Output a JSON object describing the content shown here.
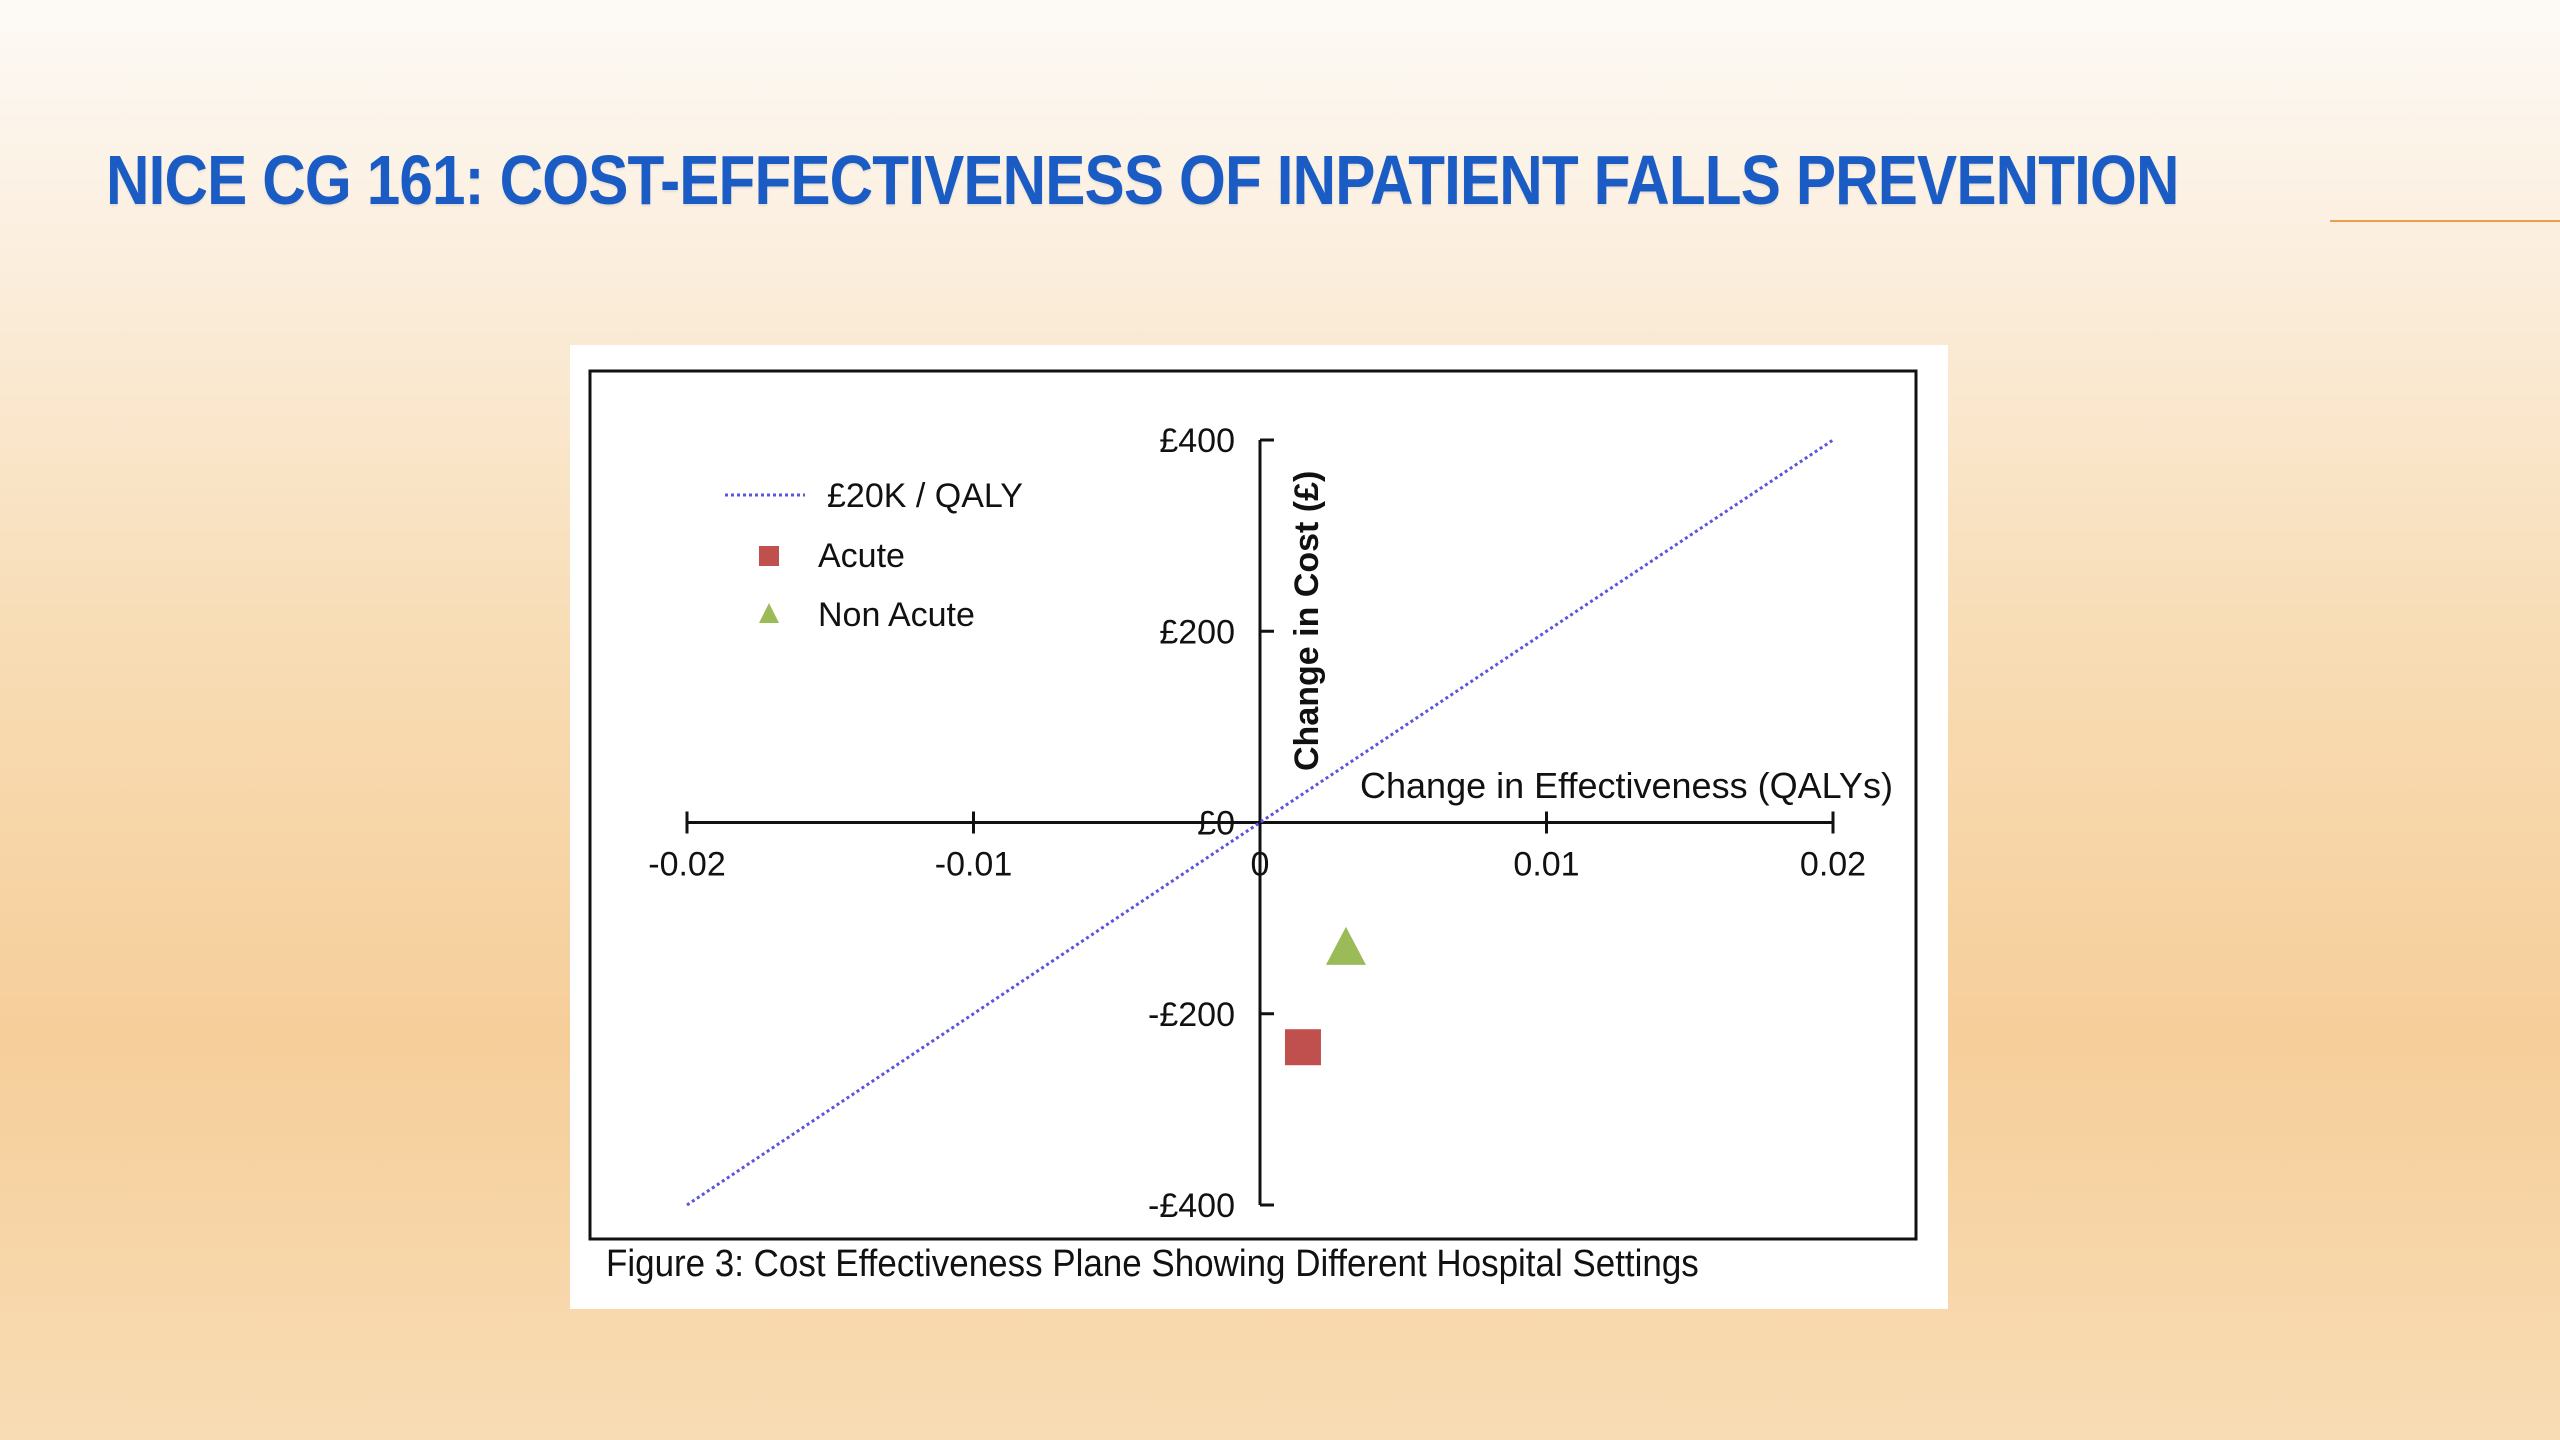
{
  "slide": {
    "title": "NICE CG 161: COST-EFFECTIVENESS OF INPATIENT FALLS PREVENTION",
    "accent_color": "#1a5cc4",
    "rule_color": "#e8a04c"
  },
  "figure": {
    "caption": "Figure 3: Cost Effectiveness Plane Showing Different Hospital Settings"
  },
  "chart_data": {
    "type": "scatter",
    "title": "",
    "xlabel": "Change in Effectiveness (QALYs)",
    "ylabel": "Change in Cost (£)",
    "xlim": [
      -0.02,
      0.02
    ],
    "ylim": [
      -400,
      400
    ],
    "x_ticks": [
      -0.02,
      -0.01,
      0,
      0.01,
      0.02
    ],
    "x_tick_labels": [
      "-0.02",
      "-0.01",
      "0",
      "0.01",
      "0.02"
    ],
    "y_ticks": [
      400,
      200,
      0,
      -200,
      -400
    ],
    "y_tick_labels": [
      "£400",
      "£200",
      "£0",
      "-£200",
      "-£400"
    ],
    "legend_position": "top-left",
    "grid": false,
    "threshold_line": {
      "name": "£20K / QALY",
      "x": [
        -0.02,
        0.02
      ],
      "y": [
        -400,
        400
      ],
      "color": "#5b54e0",
      "style": "dotted"
    },
    "series": [
      {
        "name": "Acute",
        "marker": "square",
        "color": "#c0504d",
        "x": [
          0.0015
        ],
        "y": [
          -235
        ]
      },
      {
        "name": "Non Acute",
        "marker": "triangle",
        "color": "#9bbb59",
        "x": [
          0.003
        ],
        "y": [
          -130
        ]
      }
    ]
  }
}
